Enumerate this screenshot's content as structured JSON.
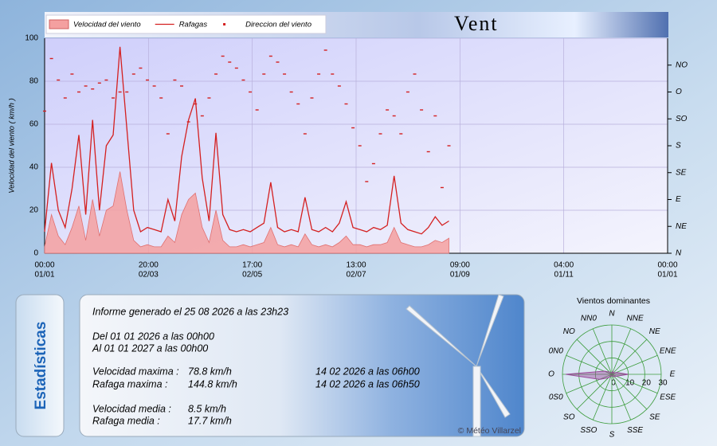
{
  "header": {
    "title": "Vent"
  },
  "chart_data": [
    {
      "type": "line",
      "y_label": "Velocidad del viento ( km/h )",
      "grid": true,
      "x": [
        0,
        0.066,
        0.132,
        0.198,
        0.264,
        0.33,
        0.396,
        0.462,
        0.528,
        0.594,
        0.66,
        0.726,
        0.792,
        0.858,
        0.924,
        0.99,
        1.056,
        1.122,
        1.188,
        1.254,
        1.32,
        1.386,
        1.452,
        1.518,
        1.584,
        1.65,
        1.716,
        1.782,
        1.848,
        1.914,
        1.98,
        2.046,
        2.112,
        2.178,
        2.244,
        2.31,
        2.376,
        2.442,
        2.508,
        2.574,
        2.64,
        2.706,
        2.772,
        2.838,
        2.904,
        2.97,
        3.036,
        3.102,
        3.168,
        3.234,
        3.3,
        3.366,
        3.432,
        3.498,
        3.564,
        3.63,
        3.696,
        3.762,
        3.828,
        3.894
      ],
      "xlim": [
        0,
        6
      ],
      "xticks": [
        {
          "value": 0,
          "label": [
            "00:00",
            "01/01"
          ]
        },
        {
          "value": 1,
          "label": [
            "20:00",
            "02/03"
          ]
        },
        {
          "value": 2,
          "label": [
            "17:00",
            "02/05"
          ]
        },
        {
          "value": 3,
          "label": [
            "13:00",
            "02/07"
          ]
        },
        {
          "value": 4,
          "label": [
            "09:00",
            "01/09"
          ]
        },
        {
          "value": 5,
          "label": [
            "04:00",
            "01/11"
          ]
        },
        {
          "value": 6,
          "label": [
            "00:00",
            "01/01"
          ]
        }
      ],
      "ylim": [
        0,
        100
      ],
      "yticks": [
        0,
        20,
        40,
        60,
        80,
        100
      ],
      "y2lim": [
        0,
        360
      ],
      "y2ticks": [
        {
          "value": 0,
          "label": "N"
        },
        {
          "value": 45,
          "label": "NE"
        },
        {
          "value": 90,
          "label": "E"
        },
        {
          "value": 135,
          "label": "SE"
        },
        {
          "value": 180,
          "label": "S"
        },
        {
          "value": 225,
          "label": "SO"
        },
        {
          "value": 270,
          "label": "O"
        },
        {
          "value": 315,
          "label": "NO"
        }
      ],
      "series": [
        {
          "name": "Velocidad del viento",
          "kind": "area",
          "color": "#f4a0a0",
          "values": [
            3,
            18,
            8,
            4,
            12,
            22,
            6,
            25,
            8,
            20,
            22,
            38,
            20,
            6,
            3,
            4,
            3,
            3,
            8,
            5,
            18,
            25,
            28,
            12,
            5,
            20,
            6,
            3,
            3,
            4,
            3,
            4,
            5,
            12,
            4,
            3,
            4,
            3,
            9,
            4,
            3,
            4,
            3,
            5,
            8,
            4,
            4,
            3,
            4,
            4,
            5,
            12,
            5,
            4,
            3,
            3,
            4,
            6,
            5,
            7
          ]
        },
        {
          "name": "Rafagas",
          "kind": "line",
          "color": "#d42020",
          "values": [
            10,
            42,
            20,
            12,
            30,
            55,
            18,
            62,
            20,
            50,
            55,
            96,
            58,
            20,
            10,
            12,
            11,
            10,
            25,
            15,
            45,
            62,
            72,
            35,
            15,
            56,
            18,
            11,
            10,
            11,
            10,
            12,
            14,
            33,
            12,
            10,
            11,
            10,
            26,
            11,
            10,
            12,
            10,
            14,
            24,
            12,
            11,
            10,
            12,
            11,
            13,
            36,
            14,
            11,
            10,
            9,
            12,
            17,
            13,
            15
          ]
        },
        {
          "name": "Direccion del viento",
          "kind": "scatter",
          "axis": "y2",
          "color": "#d42020",
          "values": [
            238,
            326,
            290,
            260,
            300,
            270,
            280,
            275,
            285,
            290,
            260,
            270,
            270,
            300,
            310,
            290,
            280,
            260,
            200,
            290,
            280,
            220,
            250,
            230,
            260,
            300,
            330,
            320,
            310,
            290,
            270,
            240,
            300,
            330,
            320,
            300,
            270,
            250,
            200,
            260,
            300,
            340,
            300,
            280,
            250,
            210,
            180,
            120,
            150,
            200,
            240,
            230,
            200,
            270,
            300,
            240,
            170,
            230,
            110,
            180
          ]
        }
      ]
    },
    {
      "type": "radar",
      "title": "Vientos dominantes",
      "color": "#9a4a9a",
      "categories": [
        "N",
        "NNE",
        "NE",
        "ENE",
        "E",
        "ESE",
        "SE",
        "SSE",
        "S",
        "SSO",
        "SO",
        "0S0",
        "O",
        "0N0",
        "NO",
        "NN0"
      ],
      "values": [
        1,
        2,
        1,
        3,
        10,
        3,
        2,
        1,
        1,
        1,
        3,
        8,
        28,
        5,
        2,
        1
      ],
      "rlim": [
        0,
        30
      ],
      "rticks": [
        0,
        10,
        20,
        30
      ]
    }
  ],
  "stats": {
    "tab": "Estadísticas",
    "generated": "Informe generado el 25 08 2026 a las 23h23",
    "from": "Del 01 01 2026 a las 00h00",
    "to": "Al 01 01 2027 a las 00h00",
    "rows": [
      [
        "Velocidad maxima :",
        "78.8 km/h",
        "14 02 2026 a las 06h00"
      ],
      [
        "Rafaga maxima :",
        "144.8 km/h",
        "14 02 2026 a las 06h50"
      ],
      [
        "Velocidad media :",
        "8.5 km/h"
      ],
      [
        "Rafaga media :",
        "17.7 km/h"
      ]
    ],
    "credit": "© Météo Villarzel"
  }
}
